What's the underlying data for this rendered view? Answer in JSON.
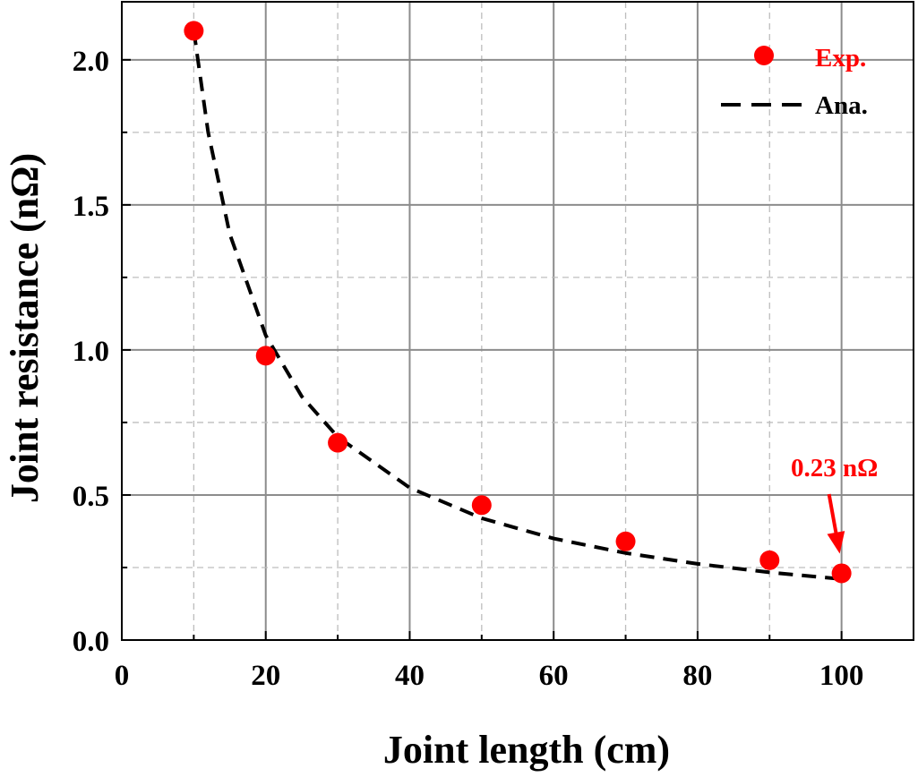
{
  "chart_data": {
    "type": "scatter",
    "xlabel": "Joint length (cm)",
    "ylabel": "Joint resistance (nΩ)",
    "xlim": [
      0,
      110
    ],
    "ylim": [
      0,
      2.2
    ],
    "xticks": [
      "0",
      "20",
      "40",
      "60",
      "80",
      "100"
    ],
    "xtick_values": [
      0,
      20,
      40,
      60,
      80,
      100
    ],
    "yticks": [
      "0.0",
      "0.5",
      "1.0",
      "1.5",
      "2.0"
    ],
    "ytick_values": [
      0,
      0.5,
      1.0,
      1.5,
      2.0
    ],
    "grid": true,
    "legend_position": "top-right",
    "series": [
      {
        "name": "Exp.",
        "kind": "scatter",
        "color": "#ff0000",
        "x": [
          10,
          20,
          30,
          50,
          70,
          90,
          100
        ],
        "y": [
          2.1,
          0.98,
          0.68,
          0.465,
          0.34,
          0.275,
          0.23
        ]
      },
      {
        "name": "Ana.",
        "kind": "dashed-line",
        "color": "#000000",
        "x": [
          10,
          12,
          15,
          20,
          25,
          30,
          40,
          50,
          60,
          70,
          80,
          90,
          100
        ],
        "y": [
          2.1,
          1.75,
          1.4,
          1.05,
          0.84,
          0.7,
          0.525,
          0.42,
          0.35,
          0.3,
          0.2625,
          0.2333,
          0.21
        ]
      }
    ],
    "annotations": [
      {
        "text": "0.23 nΩ",
        "color": "#ff0000",
        "x": 100,
        "y": 0.23
      }
    ]
  }
}
